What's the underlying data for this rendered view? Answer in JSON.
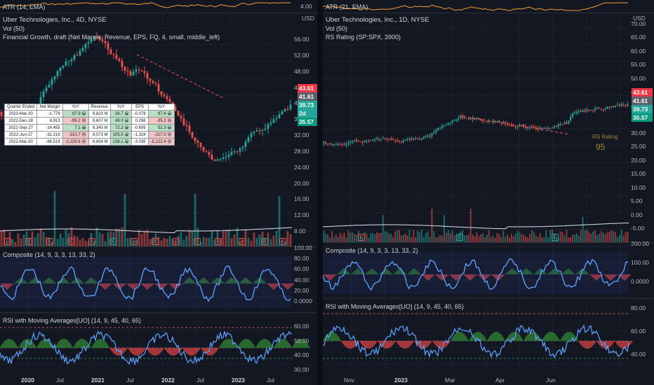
{
  "left": {
    "atr_legend": "ATR (14, EMA)",
    "atr_tick": "4.00",
    "symbol": "Uber Technologies, Inc., 4D, NYSE",
    "vol": "Vol (50)",
    "study": "Financial Growth, draft (Net Margin, Revenue, EPS, FQ, 4, small, middle_left)",
    "currency": "USD",
    "price_ticks": [
      "56.00",
      "52.00",
      "48.00",
      "44.00",
      "40.00",
      "36.00",
      "32.00",
      "28.00",
      "24.00",
      "20.00",
      "16.00",
      "12.00",
      "8.00"
    ],
    "tags": [
      {
        "text": "43.61",
        "color": "#f23645"
      },
      {
        "text": "41.61",
        "color": "#5d606b"
      },
      {
        "text": "39.73",
        "color": "#26a69a"
      },
      {
        "text": "2d 18h",
        "color": "#26a69a"
      },
      {
        "text": "35.57",
        "color": "#089981"
      }
    ],
    "table": {
      "headers": [
        "Quarter Ended",
        "Net Margin",
        "YoY",
        "Revenue",
        "YoY",
        "EPS",
        "YoY"
      ],
      "rows": [
        [
          "2023-Mar-30",
          "-1.779",
          "97.9 😀",
          "8,823 M",
          "26.7 😀",
          "-0.078",
          "97.4 😀"
        ],
        [
          "2022-Dec-28",
          "6.913",
          "-95.2 😢",
          "8,607 M",
          "49.0 😀",
          "0.298",
          "-35.2 😢"
        ],
        [
          "2022-Sep-27",
          "-14.455",
          "7.1 😀",
          "8,343 M",
          "72.2 😀",
          "-0.609",
          "52.3 😀"
        ],
        [
          "2022-Jun-27",
          "-32.219",
          "-210.7 😢",
          "8,073 M",
          "105.5 😀",
          "-1.324",
          "-217.0 😢"
        ],
        [
          "2022-Mar-30",
          "-86.519",
          "-2,225.6 😢",
          "6,854 M",
          "136.1 😀",
          "-3.035",
          "-5,122.4 😢"
        ]
      ],
      "row_state": [
        [
          "up",
          "up",
          "up"
        ],
        [
          "down",
          "up",
          "down"
        ],
        [
          "up",
          "up",
          "up"
        ],
        [
          "down",
          "up",
          "down"
        ],
        [
          "down",
          "up",
          "down"
        ]
      ]
    },
    "composite_legend": "Composite (14, 9, 3, 3, 13, 33, 2)",
    "composite_ticks": [
      "100.00",
      "80.00",
      "60.00",
      "40.00",
      "20.00",
      "0.0000"
    ],
    "rsi_legend": "RSI with Moving Averages[UO] (14, 9, 45, 40, 65)",
    "rsi_ticks": [
      "60.00",
      "50.00",
      "40.00",
      "30.00"
    ],
    "x_labels": [
      "2020",
      "Jul",
      "2021",
      "Jul",
      "2022",
      "Jul",
      "2023",
      "Jul"
    ]
  },
  "right": {
    "atr_legend": "ATR (21, EMA)",
    "symbol": "Uber Technologies, Inc., 1D, NYSE",
    "vol": "Vol (50)",
    "rs": "RS Rating (SP:SPX, 3900)",
    "currency": "USD",
    "price_ticks": [
      "70.00",
      "65.00",
      "60.00",
      "55.00",
      "50.00",
      "45.00",
      "40.00",
      "35.00",
      "30.00",
      "25.00",
      "20.00",
      "15.00",
      "10.00",
      "5.00",
      "0.00",
      "-5.00"
    ],
    "tags": [
      {
        "text": "43.61",
        "color": "#f23645"
      },
      {
        "text": "41.61",
        "color": "#5d606b"
      },
      {
        "text": "39.73",
        "color": "#26a69a"
      },
      {
        "text": "35.57",
        "color": "#089981"
      }
    ],
    "rs_label": "RS Rating",
    "rs_value": "95",
    "composite_legend": "Composite (14, 9, 3, 3, 13, 33, 2)",
    "composite_ticks": [
      "200.00",
      "100.00",
      "0.0000"
    ],
    "rsi_legend": "RSI with Moving Averages[UO] (14, 9, 45, 40, 65)",
    "rsi_ticks": [
      "80.00",
      "60.00",
      "40.00"
    ],
    "x_labels": [
      "Nov",
      "2023",
      "Mar",
      "Apr",
      "Jun"
    ]
  },
  "colors": {
    "bg": "#131722",
    "up": "#26a69a",
    "down": "#ef5350",
    "rsi_line": "#5b9cf6",
    "atr": "#f0a030",
    "vol_ma": "#e0e3eb",
    "green_fill": "#2f7d32",
    "red_fill": "#c94040"
  },
  "icons": {
    "earnings_badge": "E",
    "dividend_badge": "lightning-icon"
  }
}
